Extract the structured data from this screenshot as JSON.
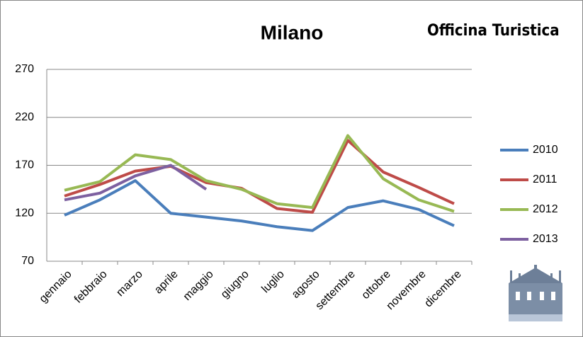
{
  "chart_data": {
    "type": "line",
    "title": "Milano",
    "logo": "Officina Turistica",
    "categories": [
      "gennaio",
      "febbraio",
      "marzo",
      "aprile",
      "maggio",
      "giugno",
      "luglio",
      "agosto",
      "settembre",
      "ottobre",
      "novembre",
      "dicembre"
    ],
    "series": [
      {
        "name": "2010",
        "color": "#4a7ebb",
        "values": [
          118,
          134,
          154,
          120,
          116,
          112,
          106,
          102,
          126,
          133,
          124,
          107
        ]
      },
      {
        "name": "2011",
        "color": "#be4b48",
        "values": [
          138,
          150,
          164,
          169,
          152,
          146,
          125,
          121,
          196,
          163,
          147,
          130
        ]
      },
      {
        "name": "2012",
        "color": "#98b954",
        "values": [
          144,
          153,
          181,
          176,
          154,
          145,
          130,
          126,
          201,
          156,
          134,
          122
        ]
      },
      {
        "name": "2013",
        "color": "#7d60a0",
        "values": [
          134,
          141,
          159,
          170,
          145,
          null,
          null,
          null,
          null,
          null,
          null,
          null
        ]
      }
    ],
    "ylim": [
      70,
      270
    ],
    "yticks": [
      70,
      120,
      170,
      220,
      270
    ],
    "grid": true,
    "legend": "right"
  }
}
